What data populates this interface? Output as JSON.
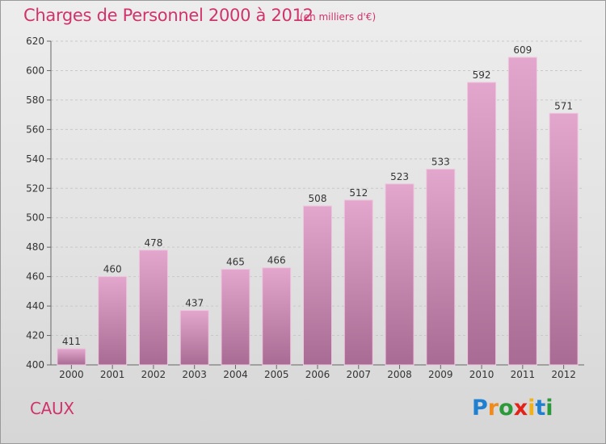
{
  "header": {
    "title": "Charges de Personnel 2000 à 2012",
    "subtitle": "(en milliers d'€)"
  },
  "footer": {
    "place": "CAUX",
    "logo_letters": [
      "P",
      "r",
      "o",
      "x",
      "i",
      "t",
      "i"
    ],
    "logo_colors": [
      "#1f7fd0",
      "#f08a1c",
      "#2a9a3a",
      "#e2231a",
      "#f0b21c",
      "#1f7fd0",
      "#2a9a3a"
    ]
  },
  "colors": {
    "bar_top": "#e3a6cc",
    "bar_bottom": "#a86c94",
    "bar_edge": "#efc6df",
    "grid": "#c8c8c8",
    "axis": "#666666",
    "text": "#333333"
  },
  "chart_data": {
    "type": "bar",
    "categories": [
      "2000",
      "2001",
      "2002",
      "2003",
      "2004",
      "2005",
      "2006",
      "2007",
      "2008",
      "2009",
      "2010",
      "2011",
      "2012"
    ],
    "values": [
      411,
      460,
      478,
      437,
      465,
      466,
      508,
      512,
      523,
      533,
      592,
      609,
      571
    ],
    "ylim": [
      400,
      620
    ],
    "yticks": [
      400,
      420,
      440,
      460,
      480,
      500,
      520,
      540,
      560,
      580,
      600,
      620
    ],
    "grid": true,
    "legend": "none",
    "data_labels": true
  }
}
